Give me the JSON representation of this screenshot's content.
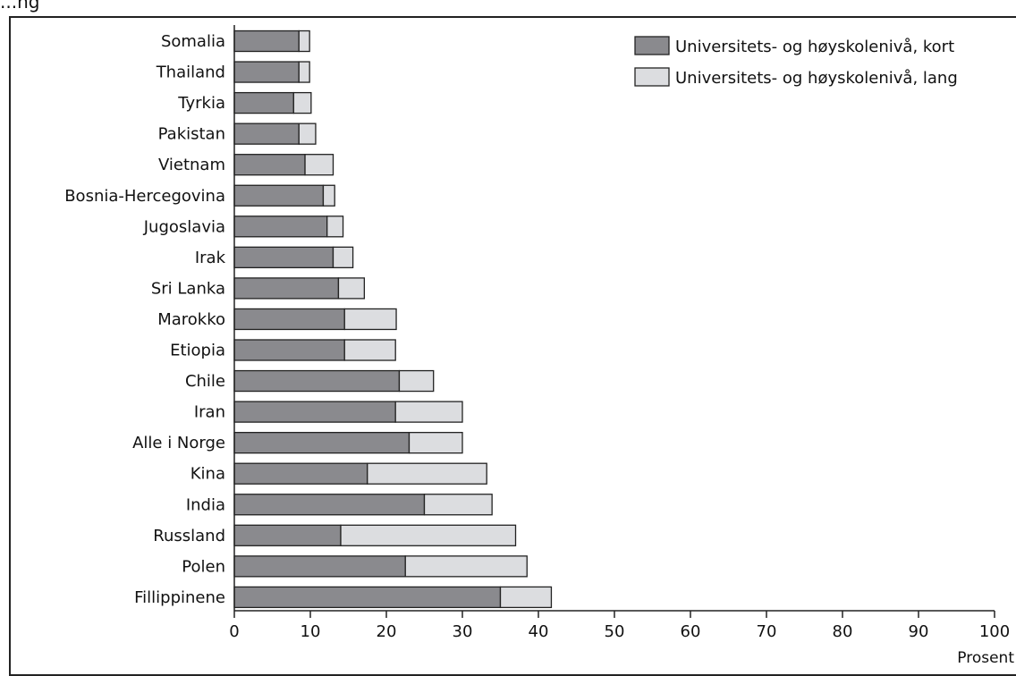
{
  "top_caption": "...ng",
  "chart_data": {
    "type": "bar",
    "orientation": "horizontal",
    "stacked": true,
    "categories": [
      "Somalia",
      "Thailand",
      "Tyrkia",
      "Pakistan",
      "Vietnam",
      "Bosnia-Hercegovina",
      "Jugoslavia",
      "Irak",
      "Sri Lanka",
      "Marokko",
      "Etiopia",
      "Chile",
      "Iran",
      "Alle i Norge",
      "Kina",
      "India",
      "Russland",
      "Polen",
      "Fillippinene"
    ],
    "series": [
      {
        "name": "Universitets- og høyskolenivå, kort",
        "color": "#8a8a8e",
        "values": [
          8.5,
          8.5,
          7.8,
          8.5,
          9.3,
          11.7,
          12.2,
          13.0,
          13.7,
          14.5,
          14.5,
          21.7,
          21.2,
          23.0,
          17.5,
          25.0,
          14.0,
          22.5,
          35.0
        ]
      },
      {
        "name": "Universitets- og høyskolenivå, lang",
        "color": "#dcdde0",
        "values": [
          1.4,
          1.4,
          2.3,
          2.2,
          3.7,
          1.5,
          2.1,
          2.6,
          3.4,
          6.8,
          6.7,
          4.5,
          8.8,
          7.0,
          15.7,
          8.9,
          23.0,
          16.0,
          6.7
        ]
      }
    ],
    "xlim": [
      0,
      100
    ],
    "xticks": [
      0,
      10,
      20,
      30,
      40,
      50,
      60,
      70,
      80,
      90,
      100
    ],
    "xlabel": "Prosent",
    "legend_position": "top-right",
    "grid": false
  }
}
